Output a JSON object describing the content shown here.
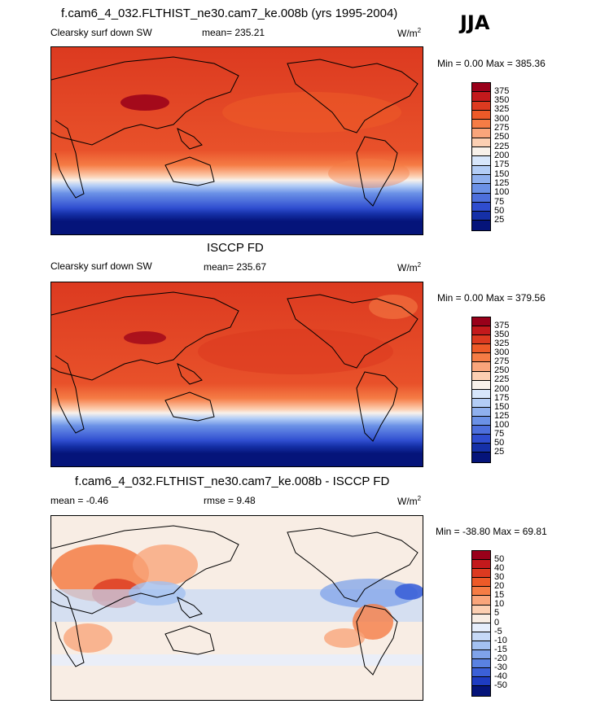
{
  "season": "JJA",
  "panels": [
    {
      "title": "f.cam6_4_032.FLTHIST_ne30.cam7_ke.008b (yrs 1995-2004)",
      "variable": "Clearsky surf down SW",
      "mean": "mean= 235.21",
      "units": "W/m",
      "units_sup": "2",
      "minmax": "Min =    0.00 Max = 385.36",
      "colorbar_labels": [
        "375",
        "350",
        "325",
        "300",
        "275",
        "250",
        "225",
        "200",
        "175",
        "150",
        "125",
        "100",
        "75",
        "50",
        "25"
      ]
    },
    {
      "title": "ISCCP FD",
      "variable": "Clearsky surf down SW",
      "mean": "mean= 235.67",
      "units": "W/m",
      "units_sup": "2",
      "minmax": "Min =    0.00 Max = 379.56",
      "colorbar_labels": [
        "375",
        "350",
        "325",
        "300",
        "275",
        "250",
        "225",
        "200",
        "175",
        "150",
        "125",
        "100",
        "75",
        "50",
        "25"
      ]
    },
    {
      "title": "f.cam6_4_032.FLTHIST_ne30.cam7_ke.008b - ISCCP FD",
      "mean": "mean =  -0.46",
      "rmse": "rmse =   9.48",
      "units": "W/m",
      "units_sup": "2",
      "minmax": "Min = -38.80 Max =  69.81",
      "colorbar_labels": [
        "50",
        "40",
        "30",
        "20",
        "15",
        "10",
        "5",
        "0",
        "-5",
        "-10",
        "-15",
        "-20",
        "-30",
        "-40",
        "-50"
      ]
    }
  ],
  "colors": {
    "abs_scale": [
      "#99001a",
      "#c3191c",
      "#dc3a20",
      "#ed5a28",
      "#f57c45",
      "#f9a57b",
      "#fccfb2",
      "#f8f1ea",
      "#d7e6fb",
      "#b3cdf6",
      "#8fb0ee",
      "#6b91e6",
      "#4d6fdc",
      "#2f4dcf",
      "#1530a8",
      "#05147a"
    ],
    "diff_scale": [
      "#99001a",
      "#c3191c",
      "#dc3a20",
      "#ed5a28",
      "#f57c45",
      "#f9a57b",
      "#fccfb2",
      "#f8ede4",
      "#e6eefc",
      "#c6d9f7",
      "#a3c1f1",
      "#7fa3ea",
      "#5a82e2",
      "#3b60d8",
      "#1e3cc2",
      "#05147a"
    ]
  }
}
